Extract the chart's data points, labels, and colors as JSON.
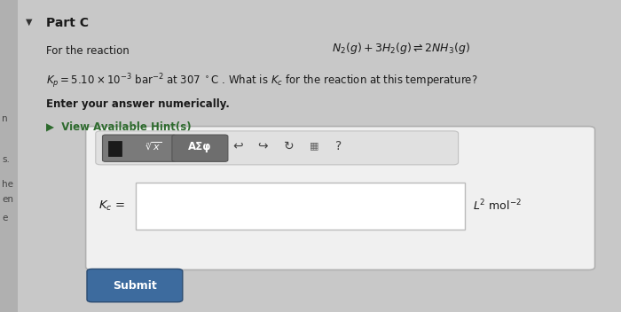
{
  "background_color": "#c8c8c8",
  "content_bg": "#ebebeb",
  "part_label": "Part C",
  "for_reaction_text": "For the reaction",
  "reaction_equation": "$N_2(g) + 3H_2(g) \\rightleftharpoons 2NH_3(g)$",
  "kp_line1": "$K_p = 5.10 \\times 10^{-3}$ bar$^{-2}$ at 307 $^\\circ$C . What is $K_c$ for the reaction at this temperature?",
  "enter_answer_text": "Enter your answer numerically.",
  "hint_text": "▶  View Available Hint(s)",
  "kc_label": "$K_c$ =",
  "units_label": "$L^2$ mol$^{-2}$",
  "submit_button_color": "#3d6b9e",
  "submit_text": "Submit",
  "input_box_color": "#ffffff",
  "toolbar_box_color": "#7a7a7a",
  "toolbar_box2_color": "#6e6e6e",
  "outer_box_color": "#e8e8e8",
  "left_margin_color": "#b0b0b0",
  "left_texts": [
    [
      "n",
      0.62
    ],
    [
      "s.",
      0.49
    ],
    [
      "he",
      0.41
    ],
    [
      "en",
      0.36
    ],
    [
      "e",
      0.3
    ]
  ]
}
